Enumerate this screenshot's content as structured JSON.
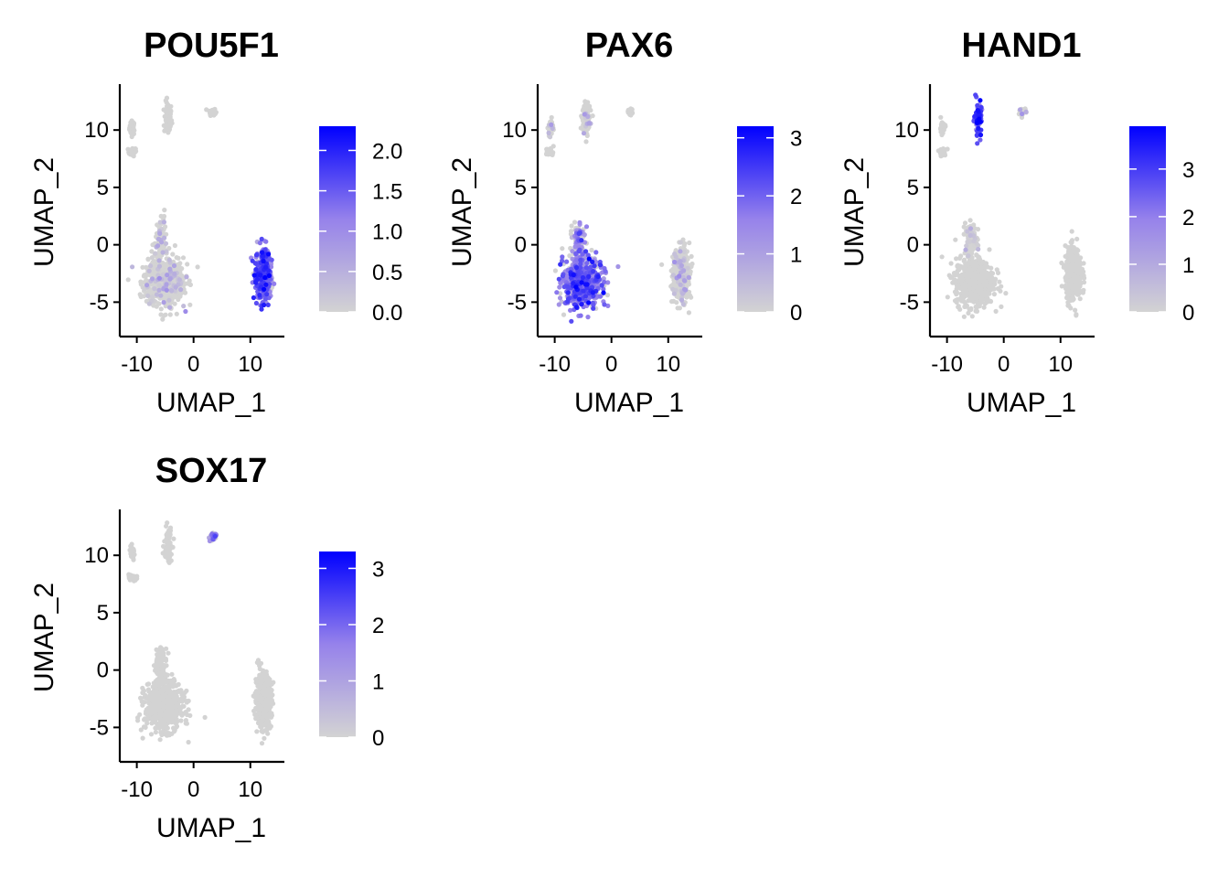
{
  "figure": {
    "low_color": "#d3d3d3",
    "high_color": "#0000ff",
    "xlabel": "UMAP_1",
    "ylabel": "UMAP_2"
  },
  "chart_data": [
    {
      "type": "scatter",
      "title": "POU5F1",
      "xlabel": "UMAP_1",
      "ylabel": "UMAP_2",
      "xlim": [
        -13,
        16
      ],
      "ylim": [
        -8,
        14
      ],
      "x_ticks": [
        -10,
        0,
        10
      ],
      "x_tick_labels": [
        "-10",
        "0",
        "10"
      ],
      "y_ticks": [
        -5,
        0,
        5,
        10
      ],
      "y_tick_labels": [
        "-5",
        "0",
        "5",
        "10"
      ],
      "color_scale": {
        "min": 0,
        "max": 2.3,
        "ticks": [
          0,
          0.5,
          1,
          1.5,
          2
        ],
        "tick_labels": [
          "0.0",
          "0.5",
          "1.0",
          "1.5",
          "2.0"
        ]
      },
      "clusters": [
        {
          "id": "top-left-small",
          "center": [
            -10.8,
            10.2
          ],
          "spread": [
            0.4,
            0.5
          ],
          "expression": 0
        },
        {
          "id": "top-left-tail",
          "center": [
            -10.8,
            8.1
          ],
          "spread": [
            0.6,
            0.3
          ],
          "expression": 0
        },
        {
          "id": "top-middle",
          "center": [
            -4.5,
            11.0
          ],
          "spread": [
            0.55,
            1.2
          ],
          "expression": 0
        },
        {
          "id": "top-right-small",
          "center": [
            3.3,
            11.6
          ],
          "spread": [
            0.5,
            0.25
          ],
          "expression": 0
        },
        {
          "id": "center-main",
          "center": [
            -5.2,
            -3.2
          ],
          "spread": [
            2.8,
            1.7
          ],
          "expression": 0.02
        },
        {
          "id": "center-stem",
          "center": [
            -5.8,
            0.3
          ],
          "spread": [
            0.9,
            1.4
          ],
          "expression": 0.05
        },
        {
          "id": "right-cluster",
          "center": [
            12.3,
            -2.6
          ],
          "spread": [
            1.2,
            1.9
          ],
          "expression": 1.3
        }
      ]
    },
    {
      "type": "scatter",
      "title": "PAX6",
      "xlabel": "UMAP_1",
      "ylabel": "UMAP_2",
      "xlim": [
        -13,
        16
      ],
      "ylim": [
        -8,
        14
      ],
      "x_ticks": [
        -10,
        0,
        10
      ],
      "x_tick_labels": [
        "-10",
        "0",
        "10"
      ],
      "y_ticks": [
        -5,
        0,
        5,
        10
      ],
      "y_tick_labels": [
        "-5",
        "0",
        "5",
        "10"
      ],
      "color_scale": {
        "min": 0,
        "max": 3.2,
        "ticks": [
          0,
          1,
          2,
          3
        ],
        "tick_labels": [
          "0",
          "1",
          "2",
          "3"
        ]
      },
      "clusters": [
        {
          "id": "top-left-small",
          "center": [
            -10.8,
            10.2
          ],
          "spread": [
            0.4,
            0.5
          ],
          "expression": 0.1
        },
        {
          "id": "top-left-tail",
          "center": [
            -10.8,
            8.1
          ],
          "spread": [
            0.6,
            0.3
          ],
          "expression": 0
        },
        {
          "id": "top-middle",
          "center": [
            -4.5,
            11.0
          ],
          "spread": [
            0.55,
            1.2
          ],
          "expression": 0.05
        },
        {
          "id": "top-right-small",
          "center": [
            3.3,
            11.6
          ],
          "spread": [
            0.5,
            0.25
          ],
          "expression": 0
        },
        {
          "id": "center-main",
          "center": [
            -5.2,
            -3.2
          ],
          "spread": [
            2.8,
            1.7
          ],
          "expression": 1.7
        },
        {
          "id": "center-stem",
          "center": [
            -5.8,
            0.3
          ],
          "spread": [
            0.9,
            1.4
          ],
          "expression": 1.3
        },
        {
          "id": "right-cluster",
          "center": [
            12.3,
            -2.6
          ],
          "spread": [
            1.2,
            1.9
          ],
          "expression": 0.02
        }
      ]
    },
    {
      "type": "scatter",
      "title": "HAND1",
      "xlabel": "UMAP_1",
      "ylabel": "UMAP_2",
      "xlim": [
        -13,
        16
      ],
      "ylim": [
        -8,
        14
      ],
      "x_ticks": [
        -10,
        0,
        10
      ],
      "x_tick_labels": [
        "-10",
        "0",
        "10"
      ],
      "y_ticks": [
        -5,
        0,
        5,
        10
      ],
      "y_tick_labels": [
        "-5",
        "0",
        "5",
        "10"
      ],
      "color_scale": {
        "min": 0,
        "max": 3.9,
        "ticks": [
          0,
          1,
          2,
          3
        ],
        "tick_labels": [
          "0",
          "1",
          "2",
          "3"
        ]
      },
      "clusters": [
        {
          "id": "top-left-small",
          "center": [
            -10.8,
            10.2
          ],
          "spread": [
            0.4,
            0.5
          ],
          "expression": 0
        },
        {
          "id": "top-left-tail",
          "center": [
            -10.8,
            8.1
          ],
          "spread": [
            0.6,
            0.3
          ],
          "expression": 0
        },
        {
          "id": "top-middle",
          "center": [
            -4.5,
            11.0
          ],
          "spread": [
            0.55,
            1.2
          ],
          "expression": 2.6
        },
        {
          "id": "top-right-small",
          "center": [
            3.3,
            11.6
          ],
          "spread": [
            0.5,
            0.25
          ],
          "expression": 0.2
        },
        {
          "id": "center-main",
          "center": [
            -5.2,
            -3.2
          ],
          "spread": [
            2.8,
            1.7
          ],
          "expression": 0
        },
        {
          "id": "center-stem",
          "center": [
            -5.8,
            0.3
          ],
          "spread": [
            0.9,
            1.4
          ],
          "expression": 0.02
        },
        {
          "id": "right-cluster",
          "center": [
            12.3,
            -2.6
          ],
          "spread": [
            1.2,
            1.9
          ],
          "expression": 0
        }
      ]
    },
    {
      "type": "scatter",
      "title": "SOX17",
      "xlabel": "UMAP_1",
      "ylabel": "UMAP_2",
      "xlim": [
        -13,
        16
      ],
      "ylim": [
        -8,
        14
      ],
      "x_ticks": [
        -10,
        0,
        10
      ],
      "x_tick_labels": [
        "-10",
        "0",
        "10"
      ],
      "y_ticks": [
        -5,
        0,
        5,
        10
      ],
      "y_tick_labels": [
        "-5",
        "0",
        "5",
        "10"
      ],
      "color_scale": {
        "min": 0,
        "max": 3.3,
        "ticks": [
          0,
          1,
          2,
          3
        ],
        "tick_labels": [
          "0",
          "1",
          "2",
          "3"
        ]
      },
      "clusters": [
        {
          "id": "top-left-small",
          "center": [
            -10.8,
            10.2
          ],
          "spread": [
            0.4,
            0.5
          ],
          "expression": 0
        },
        {
          "id": "top-left-tail",
          "center": [
            -10.8,
            8.1
          ],
          "spread": [
            0.6,
            0.3
          ],
          "expression": 0
        },
        {
          "id": "top-middle",
          "center": [
            -4.5,
            11.0
          ],
          "spread": [
            0.55,
            1.2
          ],
          "expression": 0
        },
        {
          "id": "top-right-small",
          "center": [
            3.3,
            11.6
          ],
          "spread": [
            0.5,
            0.25
          ],
          "expression": 1.3
        },
        {
          "id": "center-main",
          "center": [
            -5.2,
            -3.2
          ],
          "spread": [
            2.8,
            1.7
          ],
          "expression": 0
        },
        {
          "id": "center-stem",
          "center": [
            -5.8,
            0.3
          ],
          "spread": [
            0.9,
            1.4
          ],
          "expression": 0
        },
        {
          "id": "right-cluster",
          "center": [
            12.3,
            -2.6
          ],
          "spread": [
            1.2,
            1.9
          ],
          "expression": 0
        }
      ]
    }
  ]
}
